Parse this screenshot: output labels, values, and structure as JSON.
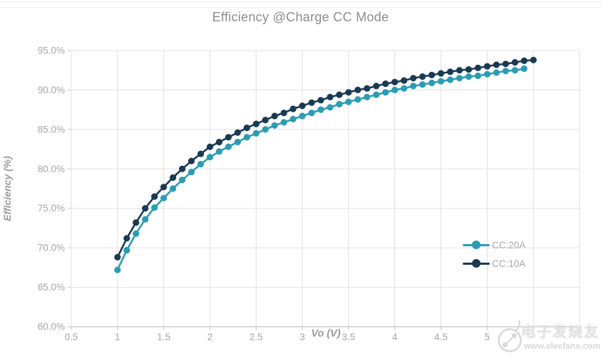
{
  "chart_data": {
    "type": "line",
    "title": "Efficiency @Charge CC Mode",
    "xlabel": "Vo (V)",
    "ylabel": "Efficiency (%)",
    "xlim": [
      0.5,
      6.0
    ],
    "ylim": [
      60.0,
      95.0
    ],
    "grid": true,
    "legend_position": "inside-right-middle",
    "x_grid_values": [
      0.5,
      1,
      1.5,
      2,
      2.5,
      3,
      3.5,
      4,
      4.5,
      5,
      5.5,
      6
    ],
    "x_tick_values": [
      0.5,
      1,
      1.5,
      2,
      2.5,
      3,
      3.5,
      4,
      4.5,
      5
    ],
    "x_tick_labels": [
      "0.5",
      "1",
      "1.5",
      "2",
      "2.5",
      "3",
      "3.5",
      "4",
      "4.5",
      "5"
    ],
    "y_tick_values": [
      60,
      65,
      70,
      75,
      80,
      85,
      90,
      95
    ],
    "y_tick_labels": [
      "60.0%",
      "65.0%",
      "70.0%",
      "75.0%",
      "80.0%",
      "85.0%",
      "90.0%",
      "95.0%"
    ],
    "series": [
      {
        "name": "CC:20A",
        "color": "#2a9db4",
        "x": [
          1.0,
          1.1,
          1.2,
          1.3,
          1.4,
          1.5,
          1.6,
          1.7,
          1.8,
          1.9,
          2.0,
          2.1,
          2.2,
          2.3,
          2.4,
          2.5,
          2.6,
          2.7,
          2.8,
          2.9,
          3.0,
          3.1,
          3.2,
          3.3,
          3.4,
          3.5,
          3.6,
          3.7,
          3.8,
          3.9,
          4.0,
          4.1,
          4.2,
          4.3,
          4.4,
          4.5,
          4.6,
          4.7,
          4.8,
          4.9,
          5.0,
          5.1,
          5.2,
          5.3,
          5.4
        ],
        "y": [
          67.2,
          69.7,
          71.8,
          73.6,
          75.1,
          76.3,
          77.5,
          78.6,
          79.6,
          80.6,
          81.5,
          82.2,
          82.8,
          83.4,
          84.0,
          84.5,
          85.0,
          85.5,
          85.9,
          86.3,
          86.7,
          87.1,
          87.5,
          87.8,
          88.2,
          88.5,
          88.8,
          89.1,
          89.4,
          89.7,
          90.0,
          90.2,
          90.5,
          90.7,
          90.9,
          91.1,
          91.3,
          91.5,
          91.7,
          91.8,
          92.0,
          92.2,
          92.4,
          92.5,
          92.7
        ]
      },
      {
        "name": "CC:10A",
        "color": "#1a3a52",
        "x": [
          1.0,
          1.1,
          1.2,
          1.3,
          1.4,
          1.5,
          1.6,
          1.7,
          1.8,
          1.9,
          2.0,
          2.1,
          2.2,
          2.3,
          2.4,
          2.5,
          2.6,
          2.7,
          2.8,
          2.9,
          3.0,
          3.1,
          3.2,
          3.3,
          3.4,
          3.5,
          3.6,
          3.7,
          3.8,
          3.9,
          4.0,
          4.1,
          4.2,
          4.3,
          4.4,
          4.5,
          4.6,
          4.7,
          4.8,
          4.9,
          5.0,
          5.1,
          5.2,
          5.3,
          5.4,
          5.5
        ],
        "y": [
          68.8,
          71.2,
          73.2,
          75.0,
          76.5,
          77.7,
          78.9,
          80.0,
          81.0,
          81.9,
          82.8,
          83.4,
          84.0,
          84.6,
          85.2,
          85.7,
          86.2,
          86.7,
          87.1,
          87.6,
          88.0,
          88.4,
          88.7,
          89.1,
          89.4,
          89.7,
          90.0,
          90.2,
          90.5,
          90.8,
          91.0,
          91.2,
          91.5,
          91.7,
          91.9,
          92.1,
          92.3,
          92.5,
          92.6,
          92.8,
          93.0,
          93.2,
          93.3,
          93.5,
          93.7,
          93.8
        ]
      }
    ],
    "colors": {
      "gridline": "#e0e0e0",
      "axis_line": "#c3c3c3",
      "tick_text": "#a6a6a6",
      "title_text": "#8c8c8c"
    }
  },
  "legend": {
    "entries": [
      {
        "label": "CC:20A"
      },
      {
        "label": "CC:10A"
      }
    ]
  },
  "watermark": {
    "text_cn": "电子发烧友",
    "url": "www.elecfans.com"
  }
}
